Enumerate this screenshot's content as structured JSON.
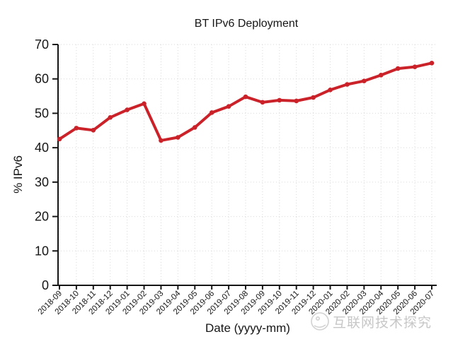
{
  "chart_data": {
    "type": "line",
    "title": "BT IPv6 Deployment",
    "xlabel": "Date (yyyy-mm)",
    "ylabel": "% IPv6",
    "ylim": [
      0,
      70
    ],
    "ytick_step": 10,
    "grid": true,
    "legend": "none",
    "line_color": "#cb222a",
    "x": [
      "2018-09",
      "2018-10",
      "2018-11",
      "2018-12",
      "2019-01",
      "2019-02",
      "2019-03",
      "2019-04",
      "2019-05",
      "2019-06",
      "2019-07",
      "2019-08",
      "2019-09",
      "2019-10",
      "2019-11",
      "2019-12",
      "2020-01",
      "2020-02",
      "2020-03",
      "2020-04",
      "2020-05",
      "2020-06",
      "2020-07"
    ],
    "values": [
      42.5,
      45.7,
      45.1,
      48.8,
      51.0,
      52.8,
      42.1,
      43.0,
      45.9,
      50.2,
      52.0,
      54.8,
      53.2,
      53.8,
      53.6,
      54.6,
      56.8,
      58.4,
      59.4,
      61.1,
      63.0,
      63.5,
      64.6
    ]
  },
  "watermark": {
    "text": "互联网技术探究"
  },
  "colors": {
    "axis": "#161616",
    "grid": "#d9d9d9",
    "watermark": "#c7c7c7"
  }
}
